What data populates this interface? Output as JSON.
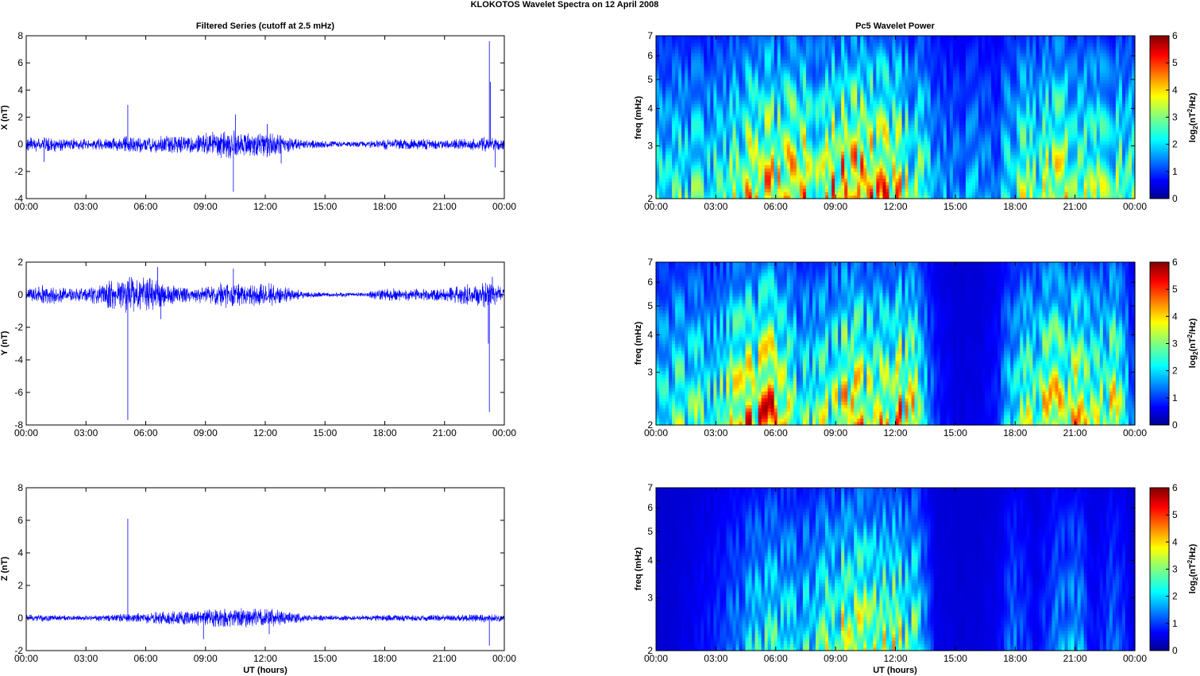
{
  "figure": {
    "title": "KLOKOTOS Wavelet Spectra on 12 April     2008"
  },
  "chart_data": [
    {
      "type": "line",
      "panel": "X",
      "title": "Filtered Series (cutoff at 2.5 mHz)",
      "xlabel": "",
      "ylabel": "X (nT)",
      "x_ticks": [
        "00:00",
        "03:00",
        "06:00",
        "09:00",
        "12:00",
        "15:00",
        "18:00",
        "21:00",
        "00:00"
      ],
      "y_ticks": [
        "-4",
        "-2",
        "0",
        "2",
        "4",
        "6",
        "8"
      ],
      "ylim": [
        -4,
        8
      ],
      "xlim_hours": [
        0,
        24
      ],
      "series_color": "#0000ff",
      "envelope": [
        {
          "x": 0,
          "amp": 0.35
        },
        {
          "x": 1,
          "amp": 0.45
        },
        {
          "x": 2,
          "amp": 0.35
        },
        {
          "x": 3,
          "amp": 0.3
        },
        {
          "x": 4,
          "amp": 0.35
        },
        {
          "x": 5,
          "amp": 0.45
        },
        {
          "x": 6,
          "amp": 0.45
        },
        {
          "x": 7,
          "amp": 0.5
        },
        {
          "x": 8,
          "amp": 0.45
        },
        {
          "x": 9,
          "amp": 0.6
        },
        {
          "x": 10,
          "amp": 0.85
        },
        {
          "x": 11,
          "amp": 0.6
        },
        {
          "x": 12,
          "amp": 0.75
        },
        {
          "x": 13,
          "amp": 0.45
        },
        {
          "x": 14,
          "amp": 0.25
        },
        {
          "x": 15,
          "amp": 0.2
        },
        {
          "x": 16,
          "amp": 0.15
        },
        {
          "x": 17,
          "amp": 0.15
        },
        {
          "x": 18,
          "amp": 0.3
        },
        {
          "x": 19,
          "amp": 0.3
        },
        {
          "x": 20,
          "amp": 0.3
        },
        {
          "x": 21,
          "amp": 0.25
        },
        {
          "x": 22,
          "amp": 0.3
        },
        {
          "x": 23,
          "amp": 0.4
        },
        {
          "x": 24,
          "amp": 0.3
        }
      ],
      "spikes": [
        {
          "x": 5.1,
          "y": 2.9
        },
        {
          "x": 10.4,
          "y": -3.5
        },
        {
          "x": 10.5,
          "y": 2.2
        },
        {
          "x": 12.1,
          "y": 1.5
        },
        {
          "x": 12.8,
          "y": -1.4
        },
        {
          "x": 23.25,
          "y": 7.6
        },
        {
          "x": 23.3,
          "y": 4.6
        },
        {
          "x": 23.55,
          "y": -1.7
        },
        {
          "x": 0.9,
          "y": -1.3
        }
      ]
    },
    {
      "type": "line",
      "panel": "Y",
      "title": "",
      "xlabel": "",
      "ylabel": "Y (nT)",
      "x_ticks": [
        "00:00",
        "03:00",
        "06:00",
        "09:00",
        "12:00",
        "15:00",
        "18:00",
        "21:00",
        "00:00"
      ],
      "y_ticks": [
        "-8",
        "-6",
        "-4",
        "-2",
        "0",
        "2"
      ],
      "ylim": [
        -8,
        2
      ],
      "xlim_hours": [
        0,
        24
      ],
      "series_color": "#0000ff",
      "envelope": [
        {
          "x": 0,
          "amp": 0.3
        },
        {
          "x": 1,
          "amp": 0.5
        },
        {
          "x": 2,
          "amp": 0.3
        },
        {
          "x": 3,
          "amp": 0.3
        },
        {
          "x": 4,
          "amp": 0.6
        },
        {
          "x": 5,
          "amp": 0.8
        },
        {
          "x": 6,
          "amp": 0.8
        },
        {
          "x": 7,
          "amp": 0.5
        },
        {
          "x": 8,
          "amp": 0.35
        },
        {
          "x": 9,
          "amp": 0.4
        },
        {
          "x": 10,
          "amp": 0.6
        },
        {
          "x": 11,
          "amp": 0.45
        },
        {
          "x": 12,
          "amp": 0.55
        },
        {
          "x": 13,
          "amp": 0.4
        },
        {
          "x": 14,
          "amp": 0.15
        },
        {
          "x": 15,
          "amp": 0.1
        },
        {
          "x": 16,
          "amp": 0.1
        },
        {
          "x": 17,
          "amp": 0.1
        },
        {
          "x": 18,
          "amp": 0.3
        },
        {
          "x": 19,
          "amp": 0.3
        },
        {
          "x": 20,
          "amp": 0.3
        },
        {
          "x": 21,
          "amp": 0.3
        },
        {
          "x": 22,
          "amp": 0.45
        },
        {
          "x": 23,
          "amp": 0.6
        },
        {
          "x": 24,
          "amp": 0.35
        }
      ],
      "spikes": [
        {
          "x": 5.1,
          "y": -7.7
        },
        {
          "x": 6.6,
          "y": 1.7
        },
        {
          "x": 10.4,
          "y": 1.6
        },
        {
          "x": 23.2,
          "y": -3.0
        },
        {
          "x": 23.25,
          "y": -7.2
        },
        {
          "x": 23.4,
          "y": 1.1
        },
        {
          "x": 6.75,
          "y": -1.5
        }
      ]
    },
    {
      "type": "line",
      "panel": "Z",
      "title": "",
      "xlabel": "UT (hours)",
      "ylabel": "Z (nT)",
      "x_ticks": [
        "00:00",
        "03:00",
        "06:00",
        "09:00",
        "12:00",
        "15:00",
        "18:00",
        "21:00",
        "00:00"
      ],
      "y_ticks": [
        "-2",
        "0",
        "2",
        "4",
        "6",
        "8"
      ],
      "ylim": [
        -2,
        8
      ],
      "xlim_hours": [
        0,
        24
      ],
      "series_color": "#0000ff",
      "envelope": [
        {
          "x": 0,
          "amp": 0.15
        },
        {
          "x": 1,
          "amp": 0.15
        },
        {
          "x": 2,
          "amp": 0.12
        },
        {
          "x": 3,
          "amp": 0.12
        },
        {
          "x": 4,
          "amp": 0.15
        },
        {
          "x": 5,
          "amp": 0.2
        },
        {
          "x": 6,
          "amp": 0.25
        },
        {
          "x": 7,
          "amp": 0.3
        },
        {
          "x": 8,
          "amp": 0.35
        },
        {
          "x": 9,
          "amp": 0.4
        },
        {
          "x": 10,
          "amp": 0.45
        },
        {
          "x": 11,
          "amp": 0.45
        },
        {
          "x": 12,
          "amp": 0.45
        },
        {
          "x": 13,
          "amp": 0.35
        },
        {
          "x": 14,
          "amp": 0.15
        },
        {
          "x": 15,
          "amp": 0.12
        },
        {
          "x": 16,
          "amp": 0.12
        },
        {
          "x": 17,
          "amp": 0.12
        },
        {
          "x": 18,
          "amp": 0.15
        },
        {
          "x": 19,
          "amp": 0.15
        },
        {
          "x": 20,
          "amp": 0.15
        },
        {
          "x": 21,
          "amp": 0.15
        },
        {
          "x": 22,
          "amp": 0.15
        },
        {
          "x": 23,
          "amp": 0.2
        },
        {
          "x": 24,
          "amp": 0.15
        }
      ],
      "spikes": [
        {
          "x": 5.1,
          "y": 6.1
        },
        {
          "x": 8.9,
          "y": -1.3
        },
        {
          "x": 12.2,
          "y": -1.0
        },
        {
          "x": 23.25,
          "y": -1.7
        }
      ]
    },
    {
      "type": "heatmap",
      "panel": "X",
      "title": "Pc5 Wavelet Power",
      "xlabel": "",
      "ylabel": "freq (mHz)",
      "x_ticks": [
        "00:00",
        "03:00",
        "06:00",
        "09:00",
        "12:00",
        "15:00",
        "18:00",
        "21:00",
        "00:00"
      ],
      "y_ticks": [
        "2",
        "3",
        "4",
        "5",
        "6",
        "7"
      ],
      "ylim_mhz": [
        2,
        7
      ],
      "y_scale": "log",
      "colorbar_label": "log2(nT2/Hz)",
      "colorbar_ticks": [
        "0",
        "1",
        "2",
        "3",
        "4",
        "5",
        "6"
      ],
      "clim": [
        0,
        6
      ],
      "colormap": "jet",
      "activity": [
        {
          "x": 0,
          "p": 2.8
        },
        {
          "x": 1,
          "p": 3.2
        },
        {
          "x": 2,
          "p": 3.0
        },
        {
          "x": 3,
          "p": 3.2
        },
        {
          "x": 4,
          "p": 4.0
        },
        {
          "x": 5,
          "p": 5.2
        },
        {
          "x": 6,
          "p": 5.0
        },
        {
          "x": 7,
          "p": 5.3
        },
        {
          "x": 8,
          "p": 5.1
        },
        {
          "x": 9,
          "p": 5.8
        },
        {
          "x": 10,
          "p": 6.0
        },
        {
          "x": 11,
          "p": 5.6
        },
        {
          "x": 12,
          "p": 5.0
        },
        {
          "x": 13,
          "p": 4.0
        },
        {
          "x": 14,
          "p": 2.2
        },
        {
          "x": 15,
          "p": 1.8
        },
        {
          "x": 16,
          "p": 2.0
        },
        {
          "x": 17,
          "p": 1.6
        },
        {
          "x": 18,
          "p": 3.6
        },
        {
          "x": 19,
          "p": 3.8
        },
        {
          "x": 20,
          "p": 4.6
        },
        {
          "x": 21,
          "p": 3.8
        },
        {
          "x": 22,
          "p": 3.6
        },
        {
          "x": 23,
          "p": 3.8
        },
        {
          "x": 24,
          "p": 3.2
        }
      ]
    },
    {
      "type": "heatmap",
      "panel": "Y",
      "title": "",
      "xlabel": "",
      "ylabel": "freq (mHz)",
      "x_ticks": [
        "00:00",
        "03:00",
        "06:00",
        "09:00",
        "12:00",
        "15:00",
        "18:00",
        "21:00",
        "00:00"
      ],
      "y_ticks": [
        "2",
        "3",
        "4",
        "5",
        "6",
        "7"
      ],
      "ylim_mhz": [
        2,
        7
      ],
      "y_scale": "log",
      "colorbar_label": "log2(nT2/Hz)",
      "colorbar_ticks": [
        "0",
        "1",
        "2",
        "3",
        "4",
        "5",
        "6"
      ],
      "clim": [
        0,
        6
      ],
      "colormap": "jet",
      "activity": [
        {
          "x": 0,
          "p": 2.4
        },
        {
          "x": 1,
          "p": 3.4
        },
        {
          "x": 2,
          "p": 3.4
        },
        {
          "x": 3,
          "p": 3.2
        },
        {
          "x": 4,
          "p": 4.8
        },
        {
          "x": 5,
          "p": 5.6
        },
        {
          "x": 6,
          "p": 6.0
        },
        {
          "x": 7,
          "p": 3.6
        },
        {
          "x": 8,
          "p": 3.2
        },
        {
          "x": 9,
          "p": 4.6
        },
        {
          "x": 10,
          "p": 5.4
        },
        {
          "x": 11,
          "p": 4.2
        },
        {
          "x": 12,
          "p": 5.6
        },
        {
          "x": 13,
          "p": 4.6
        },
        {
          "x": 14,
          "p": 0.8
        },
        {
          "x": 15,
          "p": 0.2
        },
        {
          "x": 16,
          "p": 0.2
        },
        {
          "x": 17,
          "p": 0.6
        },
        {
          "x": 18,
          "p": 3.2
        },
        {
          "x": 19,
          "p": 4.2
        },
        {
          "x": 20,
          "p": 5.0
        },
        {
          "x": 21,
          "p": 5.0
        },
        {
          "x": 22,
          "p": 3.6
        },
        {
          "x": 23,
          "p": 4.8
        },
        {
          "x": 24,
          "p": 1.2
        }
      ]
    },
    {
      "type": "heatmap",
      "panel": "Z",
      "title": "",
      "xlabel": "UT (hours)",
      "ylabel": "freq (mHz)",
      "x_ticks": [
        "00:00",
        "03:00",
        "06:00",
        "09:00",
        "12:00",
        "15:00",
        "18:00",
        "21:00",
        "00:00"
      ],
      "y_ticks": [
        "2",
        "3",
        "4",
        "5",
        "6",
        "7"
      ],
      "ylim_mhz": [
        2,
        7
      ],
      "y_scale": "log",
      "colorbar_label": "log2(nT2/Hz)",
      "colorbar_ticks": [
        "0",
        "1",
        "2",
        "3",
        "4",
        "5",
        "6"
      ],
      "clim": [
        0,
        6
      ],
      "colormap": "jet",
      "activity": [
        {
          "x": 0,
          "p": 0.0
        },
        {
          "x": 1,
          "p": 0.1
        },
        {
          "x": 2,
          "p": 0.4
        },
        {
          "x": 3,
          "p": 0.8
        },
        {
          "x": 4,
          "p": 1.6
        },
        {
          "x": 5,
          "p": 2.6
        },
        {
          "x": 6,
          "p": 3.0
        },
        {
          "x": 7,
          "p": 2.6
        },
        {
          "x": 8,
          "p": 2.8
        },
        {
          "x": 9,
          "p": 4.6
        },
        {
          "x": 10,
          "p": 4.4
        },
        {
          "x": 11,
          "p": 4.0
        },
        {
          "x": 12,
          "p": 4.2
        },
        {
          "x": 13,
          "p": 3.4
        },
        {
          "x": 14,
          "p": 0.3
        },
        {
          "x": 15,
          "p": 0.1
        },
        {
          "x": 16,
          "p": 0.1
        },
        {
          "x": 17,
          "p": 0.3
        },
        {
          "x": 18,
          "p": 1.6
        },
        {
          "x": 19,
          "p": 0.4
        },
        {
          "x": 20,
          "p": 1.6
        },
        {
          "x": 21,
          "p": 2.2
        },
        {
          "x": 22,
          "p": 0.4
        },
        {
          "x": 23,
          "p": 1.6
        },
        {
          "x": 24,
          "p": 0.1
        }
      ]
    }
  ]
}
